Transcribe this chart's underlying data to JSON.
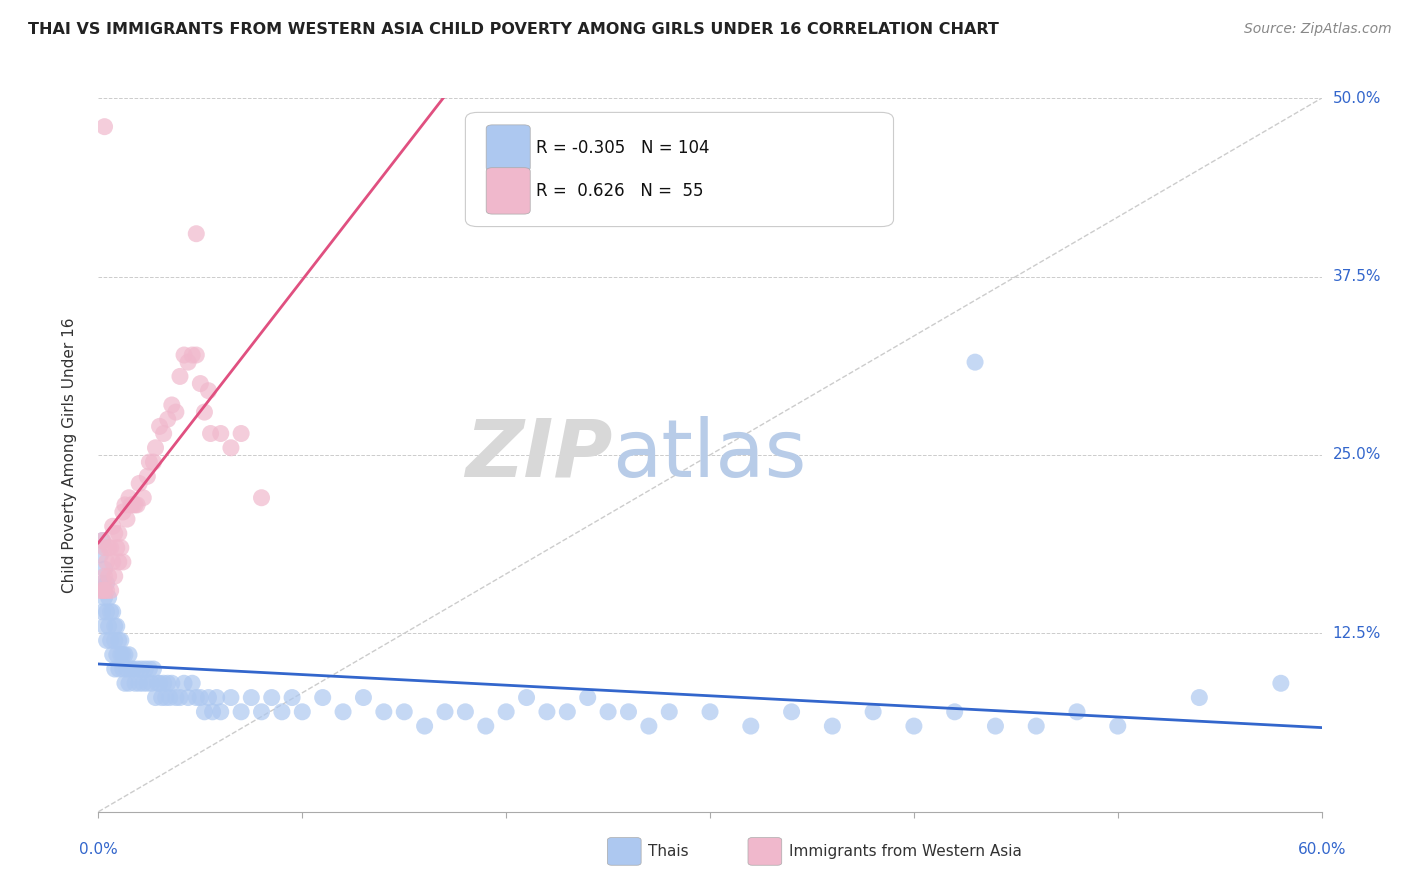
{
  "title": "THAI VS IMMIGRANTS FROM WESTERN ASIA CHILD POVERTY AMONG GIRLS UNDER 16 CORRELATION CHART",
  "source": "Source: ZipAtlas.com",
  "ylabel_label": "Child Poverty Among Girls Under 16",
  "blue_R": -0.305,
  "blue_N": 104,
  "pink_R": 0.626,
  "pink_N": 55,
  "blue_label": "Thais",
  "pink_label": "Immigrants from Western Asia",
  "blue_color": "#adc8f0",
  "pink_color": "#f0b8cc",
  "blue_line_color": "#3366cc",
  "pink_line_color": "#e05080",
  "ref_line_color": "#cccccc",
  "grid_color": "#cccccc",
  "xlim": [
    0.0,
    0.6
  ],
  "ylim": [
    0.0,
    0.5
  ],
  "bg_color": "#ffffff",
  "blue_dots": [
    [
      0.001,
      0.18
    ],
    [
      0.002,
      0.16
    ],
    [
      0.002,
      0.14
    ],
    [
      0.002,
      0.19
    ],
    [
      0.003,
      0.15
    ],
    [
      0.003,
      0.13
    ],
    [
      0.003,
      0.17
    ],
    [
      0.004,
      0.16
    ],
    [
      0.004,
      0.14
    ],
    [
      0.004,
      0.12
    ],
    [
      0.005,
      0.15
    ],
    [
      0.005,
      0.13
    ],
    [
      0.006,
      0.14
    ],
    [
      0.006,
      0.12
    ],
    [
      0.007,
      0.14
    ],
    [
      0.007,
      0.11
    ],
    [
      0.008,
      0.13
    ],
    [
      0.008,
      0.12
    ],
    [
      0.008,
      0.1
    ],
    [
      0.009,
      0.13
    ],
    [
      0.009,
      0.11
    ],
    [
      0.01,
      0.12
    ],
    [
      0.01,
      0.1
    ],
    [
      0.011,
      0.12
    ],
    [
      0.011,
      0.11
    ],
    [
      0.012,
      0.11
    ],
    [
      0.012,
      0.1
    ],
    [
      0.013,
      0.11
    ],
    [
      0.013,
      0.09
    ],
    [
      0.014,
      0.1
    ],
    [
      0.015,
      0.11
    ],
    [
      0.015,
      0.09
    ],
    [
      0.016,
      0.1
    ],
    [
      0.017,
      0.1
    ],
    [
      0.018,
      0.09
    ],
    [
      0.019,
      0.1
    ],
    [
      0.02,
      0.09
    ],
    [
      0.021,
      0.1
    ],
    [
      0.022,
      0.09
    ],
    [
      0.023,
      0.1
    ],
    [
      0.024,
      0.09
    ],
    [
      0.025,
      0.1
    ],
    [
      0.026,
      0.09
    ],
    [
      0.027,
      0.1
    ],
    [
      0.028,
      0.08
    ],
    [
      0.029,
      0.09
    ],
    [
      0.03,
      0.09
    ],
    [
      0.031,
      0.08
    ],
    [
      0.032,
      0.09
    ],
    [
      0.033,
      0.08
    ],
    [
      0.034,
      0.09
    ],
    [
      0.035,
      0.08
    ],
    [
      0.036,
      0.09
    ],
    [
      0.038,
      0.08
    ],
    [
      0.04,
      0.08
    ],
    [
      0.042,
      0.09
    ],
    [
      0.044,
      0.08
    ],
    [
      0.046,
      0.09
    ],
    [
      0.048,
      0.08
    ],
    [
      0.05,
      0.08
    ],
    [
      0.052,
      0.07
    ],
    [
      0.054,
      0.08
    ],
    [
      0.056,
      0.07
    ],
    [
      0.058,
      0.08
    ],
    [
      0.06,
      0.07
    ],
    [
      0.065,
      0.08
    ],
    [
      0.07,
      0.07
    ],
    [
      0.075,
      0.08
    ],
    [
      0.08,
      0.07
    ],
    [
      0.085,
      0.08
    ],
    [
      0.09,
      0.07
    ],
    [
      0.095,
      0.08
    ],
    [
      0.1,
      0.07
    ],
    [
      0.11,
      0.08
    ],
    [
      0.12,
      0.07
    ],
    [
      0.13,
      0.08
    ],
    [
      0.14,
      0.07
    ],
    [
      0.15,
      0.07
    ],
    [
      0.16,
      0.06
    ],
    [
      0.17,
      0.07
    ],
    [
      0.18,
      0.07
    ],
    [
      0.19,
      0.06
    ],
    [
      0.2,
      0.07
    ],
    [
      0.21,
      0.08
    ],
    [
      0.22,
      0.07
    ],
    [
      0.23,
      0.07
    ],
    [
      0.24,
      0.08
    ],
    [
      0.25,
      0.07
    ],
    [
      0.26,
      0.07
    ],
    [
      0.27,
      0.06
    ],
    [
      0.28,
      0.07
    ],
    [
      0.3,
      0.07
    ],
    [
      0.32,
      0.06
    ],
    [
      0.34,
      0.07
    ],
    [
      0.36,
      0.06
    ],
    [
      0.38,
      0.07
    ],
    [
      0.4,
      0.06
    ],
    [
      0.42,
      0.07
    ],
    [
      0.44,
      0.06
    ],
    [
      0.46,
      0.06
    ],
    [
      0.48,
      0.07
    ],
    [
      0.5,
      0.06
    ],
    [
      0.54,
      0.08
    ],
    [
      0.58,
      0.09
    ],
    [
      0.43,
      0.315
    ]
  ],
  "pink_dots": [
    [
      0.001,
      0.155
    ],
    [
      0.002,
      0.19
    ],
    [
      0.002,
      0.155
    ],
    [
      0.003,
      0.185
    ],
    [
      0.003,
      0.165
    ],
    [
      0.003,
      0.155
    ],
    [
      0.004,
      0.175
    ],
    [
      0.004,
      0.155
    ],
    [
      0.005,
      0.185
    ],
    [
      0.005,
      0.165
    ],
    [
      0.006,
      0.185
    ],
    [
      0.006,
      0.155
    ],
    [
      0.007,
      0.2
    ],
    [
      0.007,
      0.175
    ],
    [
      0.008,
      0.195
    ],
    [
      0.008,
      0.165
    ],
    [
      0.009,
      0.185
    ],
    [
      0.01,
      0.195
    ],
    [
      0.01,
      0.175
    ],
    [
      0.011,
      0.185
    ],
    [
      0.012,
      0.21
    ],
    [
      0.012,
      0.175
    ],
    [
      0.013,
      0.215
    ],
    [
      0.014,
      0.205
    ],
    [
      0.015,
      0.22
    ],
    [
      0.016,
      0.215
    ],
    [
      0.017,
      0.215
    ],
    [
      0.018,
      0.215
    ],
    [
      0.019,
      0.215
    ],
    [
      0.02,
      0.23
    ],
    [
      0.022,
      0.22
    ],
    [
      0.024,
      0.235
    ],
    [
      0.025,
      0.245
    ],
    [
      0.027,
      0.245
    ],
    [
      0.028,
      0.255
    ],
    [
      0.03,
      0.27
    ],
    [
      0.032,
      0.265
    ],
    [
      0.034,
      0.275
    ],
    [
      0.036,
      0.285
    ],
    [
      0.038,
      0.28
    ],
    [
      0.04,
      0.305
    ],
    [
      0.042,
      0.32
    ],
    [
      0.044,
      0.315
    ],
    [
      0.046,
      0.32
    ],
    [
      0.048,
      0.32
    ],
    [
      0.05,
      0.3
    ],
    [
      0.052,
      0.28
    ],
    [
      0.054,
      0.295
    ],
    [
      0.055,
      0.265
    ],
    [
      0.06,
      0.265
    ],
    [
      0.065,
      0.255
    ],
    [
      0.07,
      0.265
    ],
    [
      0.08,
      0.22
    ],
    [
      0.003,
      0.48
    ],
    [
      0.048,
      0.405
    ]
  ]
}
